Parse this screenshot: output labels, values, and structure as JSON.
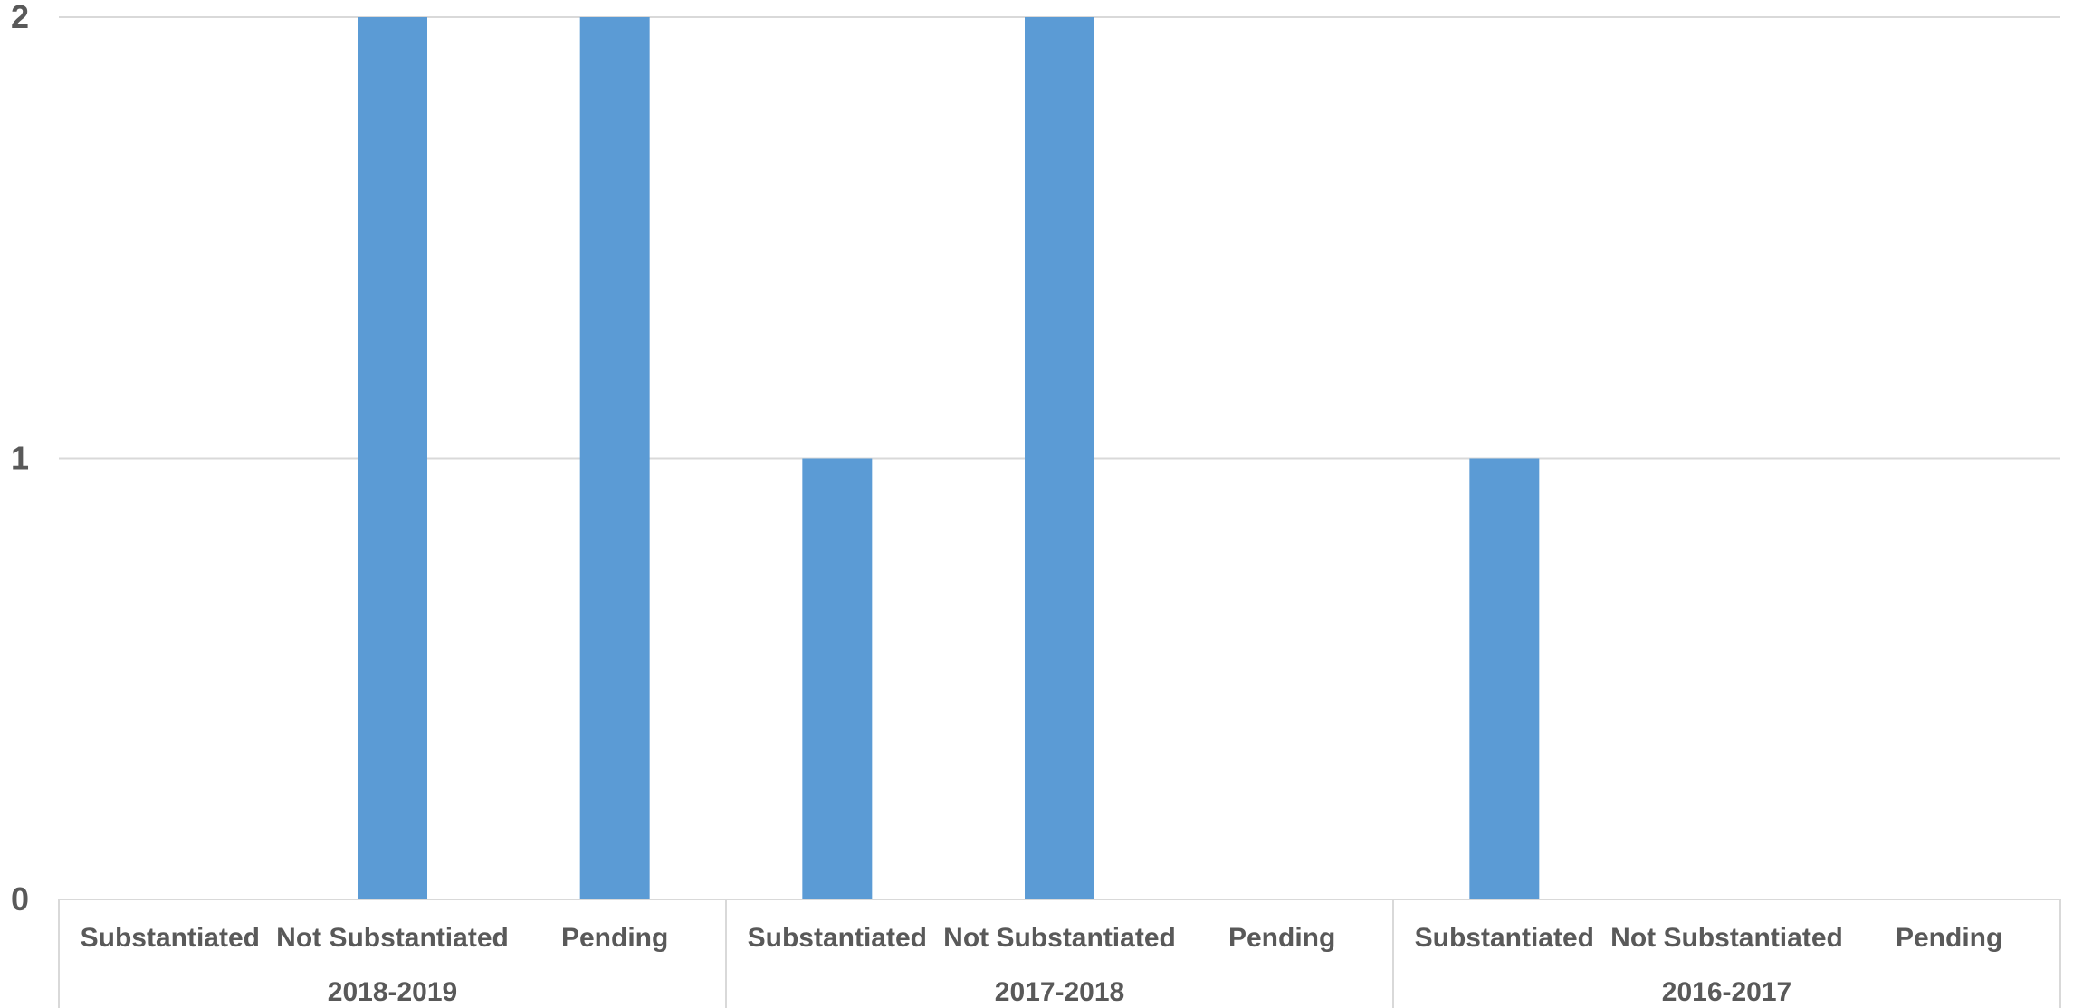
{
  "chart_data": {
    "type": "bar",
    "groups": [
      {
        "name": "2018-2019",
        "categories": [
          "Substantiated",
          "Not Substantiated",
          "Pending"
        ],
        "values": [
          0,
          2,
          2
        ]
      },
      {
        "name": "2017-2018",
        "categories": [
          "Substantiated",
          "Not Substantiated",
          "Pending"
        ],
        "values": [
          1,
          2,
          0
        ]
      },
      {
        "name": "2016-2017",
        "categories": [
          "Substantiated",
          "Not Substantiated",
          "Pending"
        ],
        "values": [
          1,
          0,
          0
        ]
      }
    ],
    "ylim": [
      0,
      2
    ],
    "yticks": [
      0,
      1,
      2
    ],
    "title": "",
    "xlabel": "",
    "ylabel": "",
    "grid": true,
    "colors": {
      "bar": "#5B9BD5",
      "grid": "#D9D9D9",
      "text": "#595959"
    }
  }
}
